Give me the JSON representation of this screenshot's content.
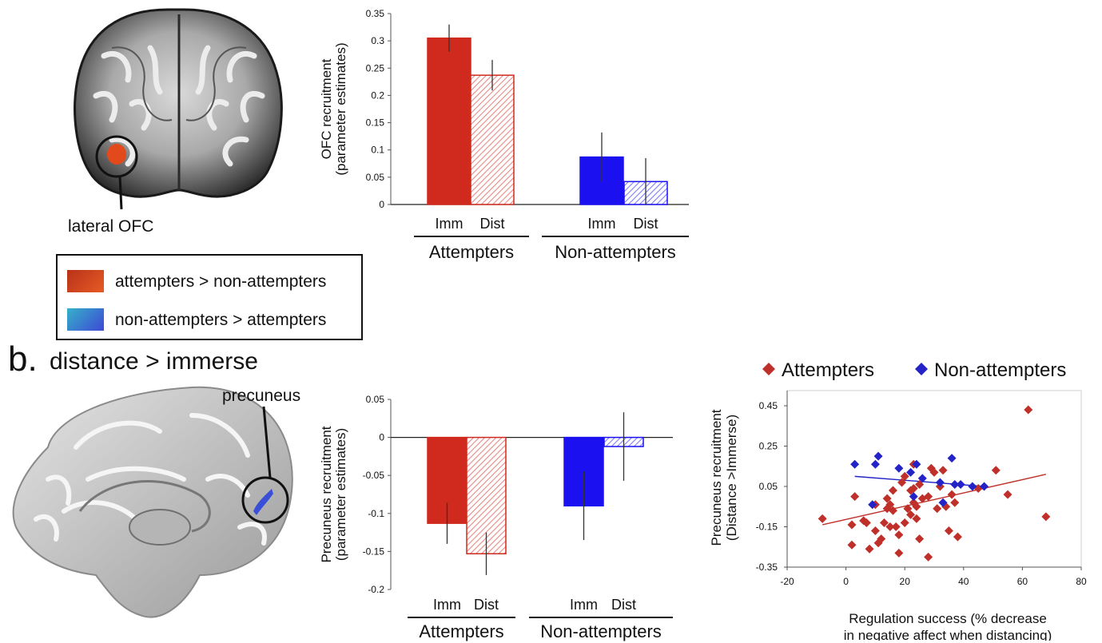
{
  "panel_b": {
    "letter": "b.",
    "title": "distance > immerse"
  },
  "brain_top": {
    "label": "lateral OFC"
  },
  "brain_bottom": {
    "label": "precuneus"
  },
  "legend": {
    "items": [
      {
        "label": "attempters > non-attempters",
        "color": "#d7431c"
      },
      {
        "label": "non-attempters > attempters",
        "color": "#3d5bd4"
      }
    ]
  },
  "colors": {
    "attempters": "#d02a1e",
    "non_attempters": "#1a10f0",
    "scatter_att": "#c0302a",
    "scatter_non": "#2323c8"
  },
  "chart_data": [
    {
      "type": "bar",
      "ylabel": [
        "OFC recruitment",
        "(parameter estimates)"
      ],
      "ylim": [
        0,
        0.35
      ],
      "yticks": [
        "0",
        "0.05",
        "0.1",
        "0.15",
        "0.2",
        "0.25",
        "0.3",
        "0.35"
      ],
      "categories": [
        "Imm",
        "Dist",
        "Imm",
        "Dist"
      ],
      "groups": [
        "Attempters",
        "Non-attempters"
      ],
      "values": [
        0.305,
        0.237,
        0.087,
        0.042
      ],
      "errors": [
        0.025,
        0.028,
        0.045,
        0.043
      ],
      "fill": [
        "solid",
        "hatched",
        "solid",
        "hatched"
      ]
    },
    {
      "type": "bar",
      "ylabel": [
        "Precuneus recruitment",
        "(parameter estimates)"
      ],
      "ylim": [
        -0.2,
        0.05
      ],
      "yticks": [
        "0.05",
        "0",
        "-0.05",
        "-0.1",
        "-0.15",
        "-0.2"
      ],
      "categories": [
        "Imm",
        "Dist",
        "Imm",
        "Dist"
      ],
      "groups": [
        "Attempters",
        "Non-attempters"
      ],
      "values": [
        -0.113,
        -0.153,
        -0.09,
        -0.012
      ],
      "errors": [
        0.027,
        0.028,
        0.045,
        0.045
      ],
      "fill": [
        "solid",
        "hatched",
        "solid",
        "hatched"
      ]
    },
    {
      "type": "scatter",
      "legend": [
        "Attempters",
        "Non-attempters"
      ],
      "legend_position": "top",
      "ylabel": [
        "Precuneus recruitment",
        "(Distance >Immerse)"
      ],
      "xlabel": [
        "Regulation success (% decrease",
        "in negative affect when distancing)"
      ],
      "xlim": [
        -20,
        80
      ],
      "ylim": [
        -0.35,
        0.45
      ],
      "xticks": [
        "-20",
        "0",
        "20",
        "40",
        "60",
        "80"
      ],
      "yticks": [
        "0.45",
        "0.25",
        "0.05",
        "-0.15",
        "-0.35"
      ],
      "series": [
        {
          "name": "Attempters",
          "points": [
            [
              -8,
              -0.11
            ],
            [
              2,
              -0.14
            ],
            [
              2,
              -0.24
            ],
            [
              3,
              0.0
            ],
            [
              6,
              -0.12
            ],
            [
              7,
              -0.13
            ],
            [
              8,
              -0.26
            ],
            [
              10,
              -0.17
            ],
            [
              10,
              -0.04
            ],
            [
              11,
              -0.23
            ],
            [
              12,
              -0.21
            ],
            [
              13,
              -0.13
            ],
            [
              14,
              -0.06
            ],
            [
              14,
              -0.01
            ],
            [
              15,
              -0.15
            ],
            [
              15,
              -0.04
            ],
            [
              16,
              -0.07
            ],
            [
              16,
              0.03
            ],
            [
              17,
              -0.15
            ],
            [
              18,
              -0.19
            ],
            [
              18,
              -0.28
            ],
            [
              19,
              0.07
            ],
            [
              20,
              -0.13
            ],
            [
              20,
              0.1
            ],
            [
              21,
              -0.06
            ],
            [
              22,
              0.03
            ],
            [
              22,
              -0.09
            ],
            [
              23,
              0.04
            ],
            [
              23,
              -0.03
            ],
            [
              23,
              0.16
            ],
            [
              24,
              -0.11
            ],
            [
              24,
              -0.05
            ],
            [
              25,
              -0.21
            ],
            [
              25,
              0.06
            ],
            [
              26,
              -0.01
            ],
            [
              28,
              -0.3
            ],
            [
              28,
              0.0
            ],
            [
              29,
              0.14
            ],
            [
              30,
              0.12
            ],
            [
              31,
              -0.06
            ],
            [
              32,
              0.05
            ],
            [
              33,
              0.13
            ],
            [
              34,
              -0.05
            ],
            [
              35,
              -0.17
            ],
            [
              36,
              0.01
            ],
            [
              37,
              -0.03
            ],
            [
              38,
              -0.2
            ],
            [
              45,
              0.04
            ],
            [
              51,
              0.13
            ],
            [
              55,
              0.01
            ],
            [
              62,
              0.43
            ],
            [
              68,
              -0.1
            ]
          ]
        },
        {
          "name": "Non-attempters",
          "points": [
            [
              3,
              0.16
            ],
            [
              9,
              -0.04
            ],
            [
              10,
              0.16
            ],
            [
              11,
              0.2
            ],
            [
              18,
              0.14
            ],
            [
              22,
              0.12
            ],
            [
              23,
              0.0
            ],
            [
              24,
              0.16
            ],
            [
              26,
              0.09
            ],
            [
              32,
              0.07
            ],
            [
              33,
              -0.03
            ],
            [
              36,
              0.19
            ],
            [
              37,
              0.06
            ],
            [
              39,
              0.06
            ],
            [
              43,
              0.05
            ],
            [
              47,
              0.05
            ]
          ]
        }
      ],
      "fits": [
        {
          "series": "Attempters",
          "x": [
            -8,
            68
          ],
          "y": [
            -0.14,
            0.11
          ]
        },
        {
          "series": "Non-attempters",
          "x": [
            3,
            47
          ],
          "y": [
            0.1,
            0.05
          ]
        }
      ]
    }
  ]
}
